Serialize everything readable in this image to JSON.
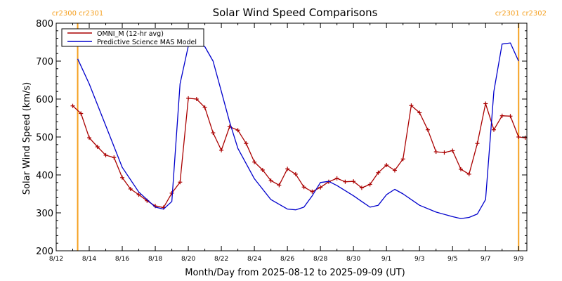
{
  "chart_data": {
    "type": "line",
    "title": "Solar Wind Speed Comparisons",
    "ylabel": "Solar Wind Speed (km/s)",
    "xlabel": "Month/Day from 2025-08-12 to 2025-09-09 (UT)",
    "xlim": [
      0,
      28.5
    ],
    "ylim": [
      200,
      800
    ],
    "yticks": [
      200,
      300,
      400,
      500,
      600,
      700,
      800
    ],
    "xticks": [
      {
        "x": 0,
        "label": "8/12"
      },
      {
        "x": 2,
        "label": "8/14"
      },
      {
        "x": 4,
        "label": "8/16"
      },
      {
        "x": 6,
        "label": "8/18"
      },
      {
        "x": 8,
        "label": "8/20"
      },
      {
        "x": 10,
        "label": "8/22"
      },
      {
        "x": 12,
        "label": "8/24"
      },
      {
        "x": 14,
        "label": "8/26"
      },
      {
        "x": 16,
        "label": "8/28"
      },
      {
        "x": 18,
        "label": "8/30"
      },
      {
        "x": 20,
        "label": "9/1"
      },
      {
        "x": 22,
        "label": "9/3"
      },
      {
        "x": 24,
        "label": "9/5"
      },
      {
        "x": 26,
        "label": "9/7"
      },
      {
        "x": 28,
        "label": "9/9"
      }
    ],
    "carrington_markers": [
      {
        "x": 1.3,
        "label": "cr2300 cr2301",
        "color": "#f5a020"
      },
      {
        "x": 28.0,
        "label": "cr2301 cr2302",
        "color": "#f5a020"
      }
    ],
    "legend_position": "top-left",
    "series": [
      {
        "name": "OMNI_M (12-hr avg)",
        "color": "#aa0000",
        "markers": true,
        "x": [
          1.0,
          1.5,
          2.0,
          2.5,
          3.0,
          3.5,
          4.0,
          4.5,
          5.0,
          5.5,
          6.0,
          6.5,
          7.0,
          7.5,
          8.0,
          8.5,
          9.0,
          9.5,
          10.0,
          10.5,
          11.0,
          11.5,
          12.0,
          12.5,
          13.0,
          13.5,
          14.0,
          14.5,
          15.0,
          15.5,
          16.0,
          16.5,
          17.0,
          17.5,
          18.0,
          18.5,
          19.0,
          19.5,
          20.0,
          20.5,
          21.0,
          21.5,
          22.0,
          22.5,
          23.0,
          23.5,
          24.0,
          24.5,
          25.0,
          25.5,
          26.0,
          26.5,
          27.0,
          27.5,
          28.0,
          28.4
        ],
        "values": [
          582,
          562,
          498,
          474,
          452,
          446,
          393,
          363,
          348,
          332,
          318,
          314,
          352,
          381,
          602,
          600,
          578,
          511,
          465,
          527,
          518,
          483,
          434,
          413,
          385,
          373,
          416,
          402,
          368,
          356,
          367,
          382,
          391,
          382,
          383,
          366,
          375,
          406,
          426,
          412,
          442,
          583,
          564,
          519,
          461,
          459,
          464,
          415,
          402,
          483,
          588,
          519,
          556,
          555,
          500,
          498
        ]
      },
      {
        "name": "Predictive Science MAS Model",
        "color": "#0000cc",
        "markers": false,
        "x": [
          1.3,
          2.0,
          3.0,
          4.0,
          5.0,
          5.5,
          6.0,
          6.5,
          7.0,
          7.5,
          8.0,
          8.5,
          9.0,
          9.5,
          10.0,
          10.5,
          11.0,
          12.0,
          13.0,
          14.0,
          14.5,
          15.0,
          15.5,
          16.0,
          16.5,
          17.0,
          18.0,
          18.5,
          19.0,
          19.5,
          20.0,
          20.5,
          21.0,
          22.0,
          23.0,
          24.0,
          24.5,
          25.0,
          25.5,
          26.0,
          26.5,
          27.0,
          27.5,
          28.0
        ],
        "values": [
          706,
          640,
          530,
          420,
          355,
          335,
          315,
          310,
          330,
          640,
          740,
          748,
          738,
          700,
          620,
          540,
          470,
          390,
          335,
          310,
          308,
          315,
          345,
          380,
          383,
          372,
          345,
          330,
          315,
          320,
          348,
          362,
          350,
          320,
          302,
          290,
          285,
          288,
          297,
          335,
          620,
          745,
          748,
          700
        ]
      }
    ]
  }
}
